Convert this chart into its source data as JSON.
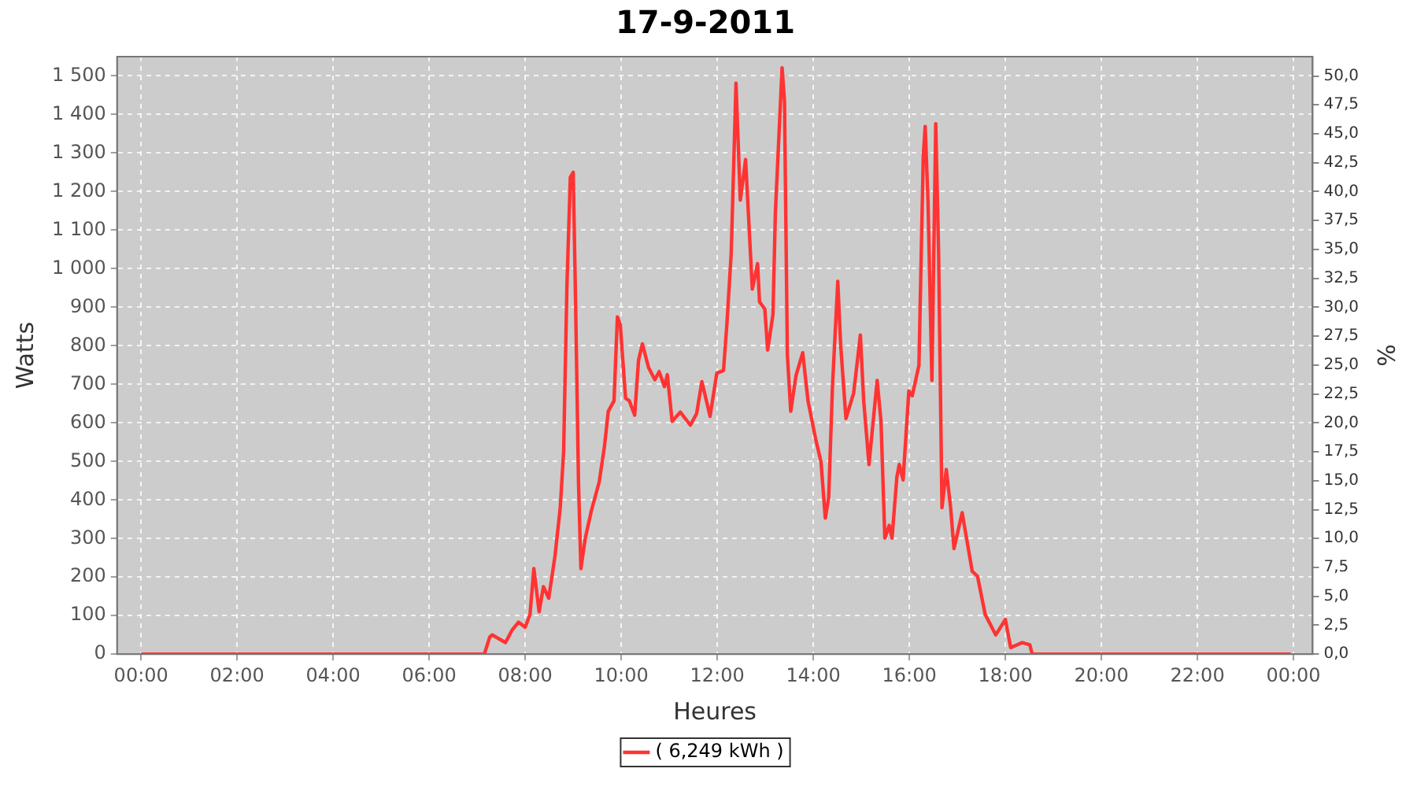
{
  "chart_data": {
    "type": "line",
    "title": "17-9-2011",
    "xlabel": "Heures",
    "ylabel": "Watts",
    "y2label": "%",
    "x": [
      0,
      7.15,
      7.26,
      7.31,
      7.59,
      7.73,
      7.86,
      8.0,
      8.1,
      8.18,
      8.29,
      8.38,
      8.49,
      8.62,
      8.73,
      8.8,
      8.87,
      8.94,
      9.0,
      9.05,
      9.11,
      9.16,
      9.25,
      9.38,
      9.54,
      9.65,
      9.73,
      9.85,
      9.92,
      9.98,
      10.09,
      10.17,
      10.28,
      10.36,
      10.44,
      10.57,
      10.7,
      10.79,
      10.9,
      10.96,
      11.06,
      11.23,
      11.44,
      11.57,
      11.68,
      11.85,
      11.99,
      12.13,
      12.2,
      12.29,
      12.39,
      12.48,
      12.59,
      12.73,
      12.84,
      12.88,
      12.99,
      13.05,
      13.16,
      13.21,
      13.35,
      13.4,
      13.46,
      13.53,
      13.64,
      13.78,
      13.89,
      14.05,
      14.16,
      14.25,
      14.32,
      14.4,
      14.51,
      14.57,
      14.68,
      14.84,
      14.98,
      15.05,
      15.16,
      15.33,
      15.41,
      15.49,
      15.58,
      15.64,
      15.74,
      15.79,
      15.87,
      15.99,
      16.06,
      16.2,
      16.29,
      16.33,
      16.39,
      16.47,
      16.55,
      16.61,
      16.68,
      16.77,
      16.86,
      16.93,
      17.1,
      17.31,
      17.42,
      17.58,
      17.8,
      18.0,
      18.11,
      18.24,
      18.35,
      18.51,
      18.56,
      23.94
    ],
    "series": [
      {
        "name": "( 6,249 kWh )",
        "color": "#ff3333",
        "values": [
          0,
          0,
          44,
          50,
          30,
          63,
          83,
          70,
          103,
          222,
          110,
          175,
          145,
          254,
          380,
          525,
          960,
          1237,
          1250,
          907,
          446,
          222,
          300,
          373,
          446,
          538,
          630,
          657,
          875,
          855,
          664,
          657,
          620,
          762,
          805,
          743,
          712,
          733,
          694,
          725,
          604,
          628,
          594,
          624,
          707,
          617,
          729,
          736,
          855,
          1039,
          1481,
          1178,
          1283,
          947,
          1013,
          914,
          895,
          789,
          881,
          1145,
          1521,
          1435,
          776,
          630,
          723,
          782,
          657,
          558,
          499,
          353,
          406,
          696,
          967,
          802,
          611,
          677,
          828,
          657,
          492,
          710,
          604,
          301,
          334,
          301,
          459,
          492,
          452,
          683,
          670,
          749,
          1290,
          1369,
          1171,
          710,
          1376,
          1039,
          380,
          479,
          380,
          274,
          367,
          215,
          202,
          103,
          50,
          90,
          17,
          24,
          30,
          24,
          0,
          0
        ]
      }
    ],
    "xlim": [
      -0.5,
      24.4
    ],
    "xticks": [
      {
        "value": 0,
        "label": "00:00"
      },
      {
        "value": 2,
        "label": "02:00"
      },
      {
        "value": 4,
        "label": "04:00"
      },
      {
        "value": 6,
        "label": "06:00"
      },
      {
        "value": 8,
        "label": "08:00"
      },
      {
        "value": 10,
        "label": "10:00"
      },
      {
        "value": 12,
        "label": "12:00"
      },
      {
        "value": 14,
        "label": "14:00"
      },
      {
        "value": 16,
        "label": "16:00"
      },
      {
        "value": 18,
        "label": "18:00"
      },
      {
        "value": 20,
        "label": "20:00"
      },
      {
        "value": 22,
        "label": "22:00"
      },
      {
        "value": 24,
        "label": "00:00"
      }
    ],
    "ylim": [
      0,
      1550
    ],
    "yticks": [
      0,
      100,
      200,
      300,
      400,
      500,
      600,
      700,
      800,
      900,
      {
        "value": 1000,
        "label": "1 000"
      },
      {
        "value": 1100,
        "label": "1 100"
      },
      {
        "value": 1200,
        "label": "1 200"
      },
      {
        "value": 1300,
        "label": "1 300"
      },
      {
        "value": 1400,
        "label": "1 400"
      },
      {
        "value": 1500,
        "label": "1 500"
      }
    ],
    "y2lim": [
      0,
      51.67
    ],
    "y2ticks": [
      {
        "value": 0,
        "label": "0,0"
      },
      {
        "value": 2.5,
        "label": "2,5"
      },
      {
        "value": 5,
        "label": "5,0"
      },
      {
        "value": 7.5,
        "label": "7,5"
      },
      {
        "value": 10,
        "label": "10,0"
      },
      {
        "value": 12.5,
        "label": "12,5"
      },
      {
        "value": 15,
        "label": "15,0"
      },
      {
        "value": 17.5,
        "label": "17,5"
      },
      {
        "value": 20,
        "label": "20,0"
      },
      {
        "value": 22.5,
        "label": "22,5"
      },
      {
        "value": 25,
        "label": "25,0"
      },
      {
        "value": 27.5,
        "label": "27,5"
      },
      {
        "value": 30,
        "label": "30,0"
      },
      {
        "value": 32.5,
        "label": "32,5"
      },
      {
        "value": 35,
        "label": "35,0"
      },
      {
        "value": 37.5,
        "label": "37,5"
      },
      {
        "value": 40,
        "label": "40,0"
      },
      {
        "value": 42.5,
        "label": "42,5"
      },
      {
        "value": 45,
        "label": "45,0"
      },
      {
        "value": 47.5,
        "label": "47,5"
      },
      {
        "value": 50,
        "label": "50,0"
      }
    ],
    "grid": true,
    "legend": "bottom",
    "marker": "none",
    "line_style": "solid"
  }
}
